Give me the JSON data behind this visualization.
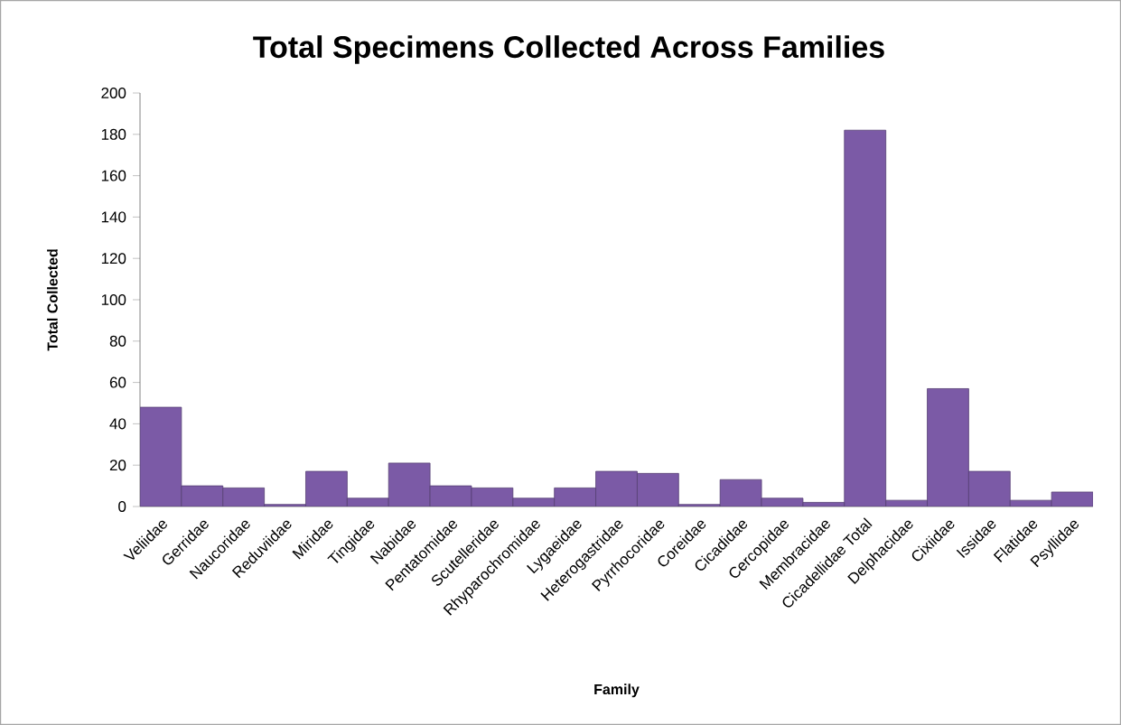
{
  "chart_data": {
    "type": "bar",
    "title": "Total Specimens Collected Across Families",
    "xlabel": "Family",
    "ylabel": "Total Collected",
    "categories": [
      "Veliidae",
      "Gerridae",
      "Naucoridae",
      "Reduviidae",
      "Miridae",
      "Tingidae",
      "Nabidae",
      "Pentatomidae",
      "Scutelleridae",
      "Rhyparochromidae",
      "Lygaeidae",
      "Heterogastridae",
      "Pyrrhocoridae",
      "Coreidae",
      "Cicadidae",
      "Cercopidae",
      "Membracidae",
      "Cicadellidae Total",
      "Delphacidae",
      "Cixiidae",
      "Issidae",
      "Flatidae",
      "Psyllidae"
    ],
    "values": [
      48,
      10,
      9,
      1,
      17,
      4,
      21,
      10,
      9,
      4,
      9,
      17,
      16,
      1,
      13,
      4,
      2,
      182,
      3,
      57,
      17,
      3,
      7
    ],
    "color": "#7b5aa6",
    "ylim": [
      0,
      200
    ],
    "yticks": [
      0,
      20,
      40,
      60,
      80,
      100,
      120,
      140,
      160,
      180,
      200
    ],
    "grid": false
  }
}
